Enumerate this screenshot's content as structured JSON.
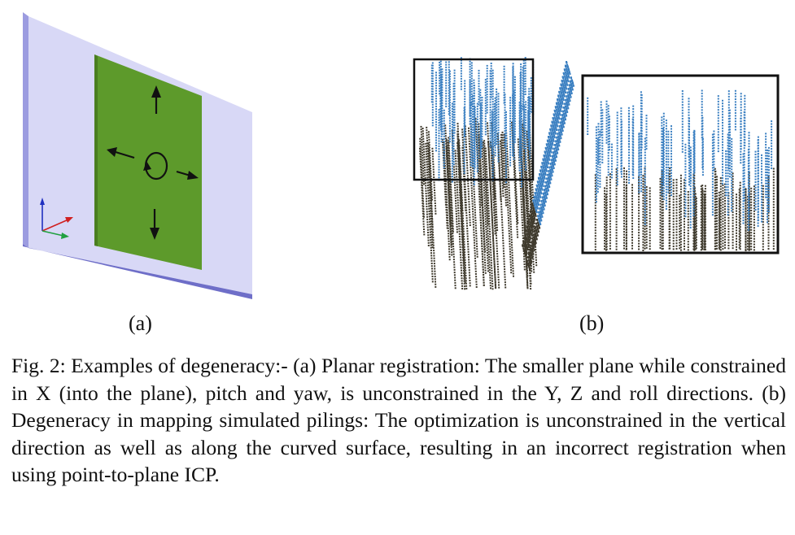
{
  "figure": {
    "subfigure_a_label": "(a)",
    "subfigure_b_label": "(b)",
    "caption": "Fig. 2: Examples of degeneracy:- (a) Planar registration: The smaller plane while constrained in X (into the plane), pitch and yaw, is unconstrained in the Y, Z and roll directions. (b) Degeneracy in mapping simulated pilings: The optimization is unconstrained in the vertical direction as well as along the curved surface, resulting in an incorrect registration when using point-to-plane ICP.",
    "colors": {
      "large_plane": "#d8d8f6",
      "large_plane_edge": "#7c7cd0",
      "small_plane": "#5d9a2b",
      "reference_cloud": "#3f3a2d",
      "registered_cloud": "#3a7fc1",
      "axis_x": "#d02020",
      "axis_y": "#20a040",
      "axis_z": "#2030c0"
    }
  }
}
